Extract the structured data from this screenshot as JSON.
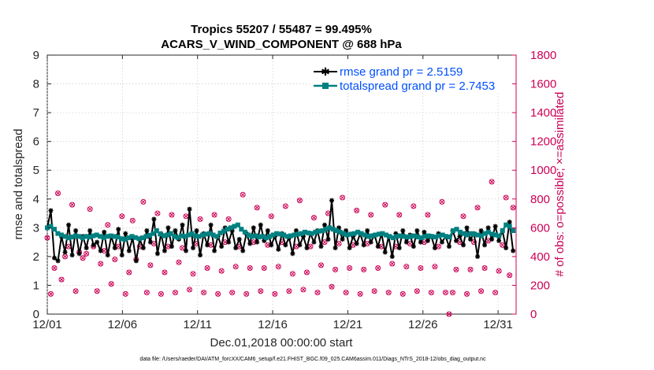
{
  "chart_data": {
    "type": "line",
    "title": "Tropics 55207 / 55487 = 99.495%",
    "subtitle": "ACARS_V_WIND_COMPONENT @ 688 hPa",
    "xlabel": "Dec.01,2018 00:00:00 start",
    "ylabel": "rmse and totalspread",
    "ylabel_right": "# of obs: o=possible; ×=assimilated",
    "xlim": [
      0,
      31.2
    ],
    "ylim": [
      0,
      9
    ],
    "ylim_right": [
      0,
      1800
    ],
    "x_tick_values": [
      0,
      5,
      10,
      15,
      20,
      25,
      30
    ],
    "x_tick_labels": [
      "12/01",
      "12/06",
      "12/11",
      "12/16",
      "12/21",
      "12/26",
      "12/31"
    ],
    "y_ticks": [
      "0",
      "1",
      "2",
      "3",
      "4",
      "5",
      "6",
      "7",
      "8",
      "9"
    ],
    "y_ticks_right": [
      "0",
      "200",
      "400",
      "600",
      "800",
      "1000",
      "1200",
      "1400",
      "1600",
      "1800"
    ],
    "legend_position": "top-right",
    "colors": {
      "rmse": "#000000",
      "spread": "#008080",
      "obs": "#cc0055",
      "legend_text": "#0050ff"
    },
    "series": [
      {
        "name": "rmse",
        "legend": "rmse grand pr = 2.5159",
        "values": [
          3.0,
          3.6,
          1.95,
          1.85,
          2.7,
          2.15,
          3.1,
          2.05,
          2.9,
          2.1,
          2.7,
          2.3,
          2.9,
          2.4,
          2.5,
          2.2,
          2.85,
          2.05,
          2.7,
          2.3,
          2.95,
          2.05,
          2.8,
          2.2,
          2.65,
          1.85,
          2.6,
          2.3,
          2.9,
          2.5,
          3.3,
          2.1,
          2.8,
          2.2,
          3.0,
          2.35,
          2.9,
          2.6,
          3.1,
          2.2,
          3.65,
          2.3,
          2.9,
          2.05,
          2.8,
          2.4,
          3.1,
          2.2,
          2.7,
          2.35,
          3.0,
          2.5,
          2.9,
          2.3,
          2.6,
          2.2,
          2.8,
          2.45,
          3.0,
          2.5,
          3.1,
          2.55,
          2.9,
          2.4,
          2.7,
          2.25,
          2.8,
          2.4,
          2.65,
          2.1,
          2.9,
          2.4,
          2.7,
          2.3,
          2.8,
          2.5,
          2.9,
          2.35,
          3.1,
          2.6,
          3.95,
          2.3,
          3.0,
          2.6,
          2.9,
          2.3,
          2.7,
          2.45,
          2.8,
          2.4,
          2.9,
          2.5,
          2.75,
          2.35,
          2.8,
          2.15,
          2.7,
          2.0,
          2.8,
          2.3,
          2.9,
          2.5,
          2.75,
          2.35,
          2.9,
          2.5,
          2.85,
          2.55,
          2.7,
          2.3,
          2.8,
          2.5,
          2.7,
          2.35,
          2.9,
          2.55,
          2.7,
          2.4,
          3.0,
          2.6,
          2.8,
          2.0,
          2.9,
          2.4,
          3.0,
          2.6,
          3.05,
          2.55,
          2.9,
          2.3,
          3.2,
          2.2
        ]
      },
      {
        "name": "totalspread",
        "legend": "totalspread grand pr = 2.7453",
        "values": [
          3.0,
          3.05,
          2.95,
          2.8,
          2.75,
          2.7,
          2.65,
          2.68,
          2.72,
          2.7,
          2.65,
          2.7,
          2.68,
          2.72,
          2.75,
          2.7,
          2.66,
          2.7,
          2.72,
          2.7,
          2.68,
          2.62,
          2.6,
          2.65,
          2.7,
          2.66,
          2.62,
          2.65,
          2.7,
          2.74,
          2.8,
          2.9,
          2.78,
          2.72,
          2.75,
          2.8,
          2.7,
          2.66,
          2.72,
          2.7,
          2.75,
          2.8,
          2.72,
          2.7,
          2.75,
          2.78,
          2.8,
          2.75,
          2.7,
          2.82,
          2.88,
          2.95,
          3.0,
          3.05,
          3.1,
          2.95,
          2.85,
          2.75,
          2.7,
          2.72,
          2.68,
          2.7,
          2.65,
          2.7,
          2.75,
          2.8,
          2.78,
          2.75,
          2.7,
          2.72,
          2.75,
          2.78,
          2.8,
          2.85,
          2.82,
          2.8,
          2.85,
          2.88,
          2.9,
          2.95,
          3.0,
          2.95,
          2.9,
          2.85,
          2.8,
          2.75,
          2.78,
          2.8,
          2.85,
          2.8,
          2.75,
          2.7,
          2.72,
          2.75,
          2.78,
          2.8,
          2.75,
          2.7,
          2.65,
          2.7,
          2.72,
          2.7,
          2.68,
          2.7,
          2.72,
          2.68,
          2.65,
          2.7,
          2.72,
          2.7,
          2.68,
          2.72,
          2.75,
          2.7,
          2.68,
          2.9,
          2.95,
          2.85,
          2.8,
          2.75,
          2.8,
          2.78,
          2.75,
          2.72,
          2.8,
          2.85,
          2.78,
          2.75,
          2.72,
          2.9,
          3.1,
          3.05,
          2.9
        ]
      }
    ],
    "obs_series": {
      "name": "# of obs",
      "values": [
        530,
        140,
        320,
        840,
        240,
        400,
        470,
        760,
        160,
        430,
        390,
        420,
        730,
        470,
        160,
        350,
        440,
        620,
        210,
        380,
        470,
        680,
        140,
        290,
        650,
        380,
        470,
        780,
        150,
        340,
        490,
        700,
        140,
        290,
        470,
        690,
        150,
        360,
        460,
        680,
        170,
        280,
        490,
        660,
        150,
        320,
        480,
        690,
        140,
        300,
        500,
        660,
        150,
        330,
        470,
        830,
        140,
        320,
        500,
        740,
        160,
        320,
        480,
        680,
        140,
        330,
        500,
        750,
        160,
        280,
        470,
        790,
        170,
        290,
        470,
        670,
        150,
        340,
        500,
        700,
        190,
        310,
        490,
        810,
        150,
        320,
        480,
        720,
        140,
        310,
        490,
        690,
        160,
        320,
        470,
        760,
        150,
        350,
        470,
        690,
        140,
        330,
        490,
        750,
        160,
        320,
        500,
        690,
        150,
        330,
        470,
        780,
        150,
        0,
        150,
        310,
        500,
        680,
        140,
        310,
        500,
        740,
        160,
        320,
        510,
        920,
        150,
        300,
        480,
        810,
        270,
        740
      ]
    }
  },
  "footnote": "data file: /Users/raeder/DAI/ATM_forcXX/CAM6_setup/f.e21.FHIST_BGC.f09_025.CAM6assim.011/Diags_NTrS_2018-12/obs_diag_output.nc"
}
